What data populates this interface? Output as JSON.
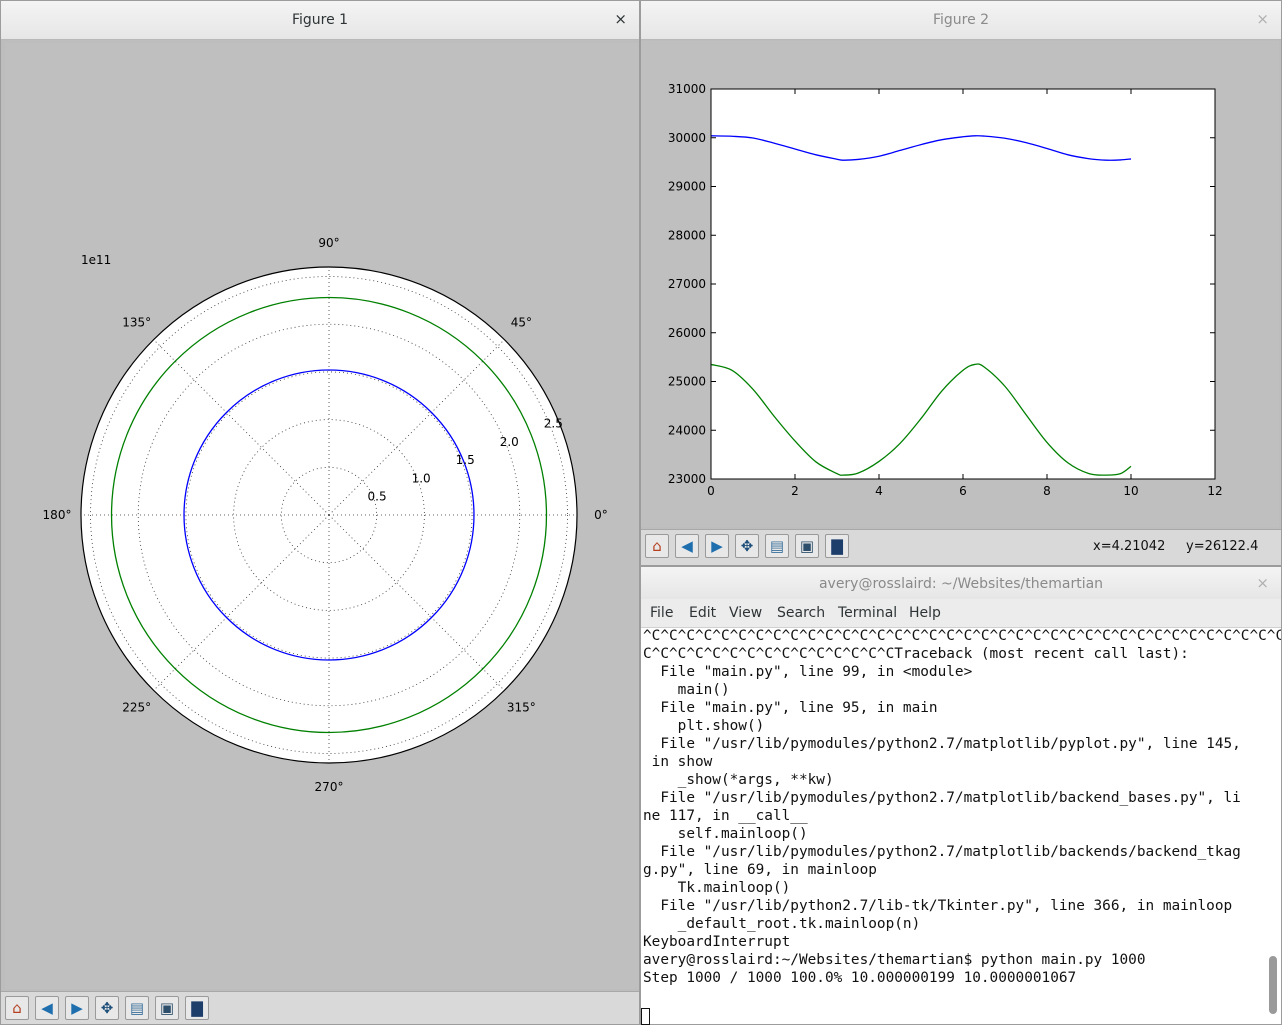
{
  "figure1": {
    "title": "Figure 1",
    "close": "×",
    "polar": {
      "scale_label": "1e11",
      "angle_labels": [
        "0°",
        "45°",
        "90°",
        "135°",
        "180°",
        "225°",
        "270°",
        "315°"
      ],
      "radial_labels": [
        "0.5",
        "1.0",
        "1.5",
        "2.0",
        "2.5"
      ],
      "rmax": 2.6,
      "series": [
        {
          "color": "#0000ff",
          "radius": 1.52
        },
        {
          "color": "#008000",
          "radius": 2.28
        }
      ]
    }
  },
  "figure2": {
    "title": "Figure 2",
    "close": "×",
    "x_readout": "x=4.21042",
    "y_readout": "y=26122.4"
  },
  "toolbar_icons": [
    "home-icon",
    "back-icon",
    "forward-icon",
    "pan-icon",
    "subplots-icon",
    "configure-icon",
    "save-icon"
  ],
  "terminal": {
    "title": "avery@rosslaird: ~/Websites/themartian",
    "close": "×",
    "menu": [
      "File",
      "Edit",
      "View",
      "Search",
      "Terminal",
      "Help"
    ],
    "lines": [
      "^C^C^C^C^C^C^C^C^C^C^C^C^C^C^C^C^C^C^C^C^C^C^C^C^C^C^C^C^C^C^C^C^C^C^C^C^C",
      "C^C^C^C^C^C^C^C^C^C^C^C^C^C^CTraceback (most recent call last):",
      "  File \"main.py\", line 99, in <module>",
      "    main()",
      "  File \"main.py\", line 95, in main",
      "    plt.show()",
      "  File \"/usr/lib/pymodules/python2.7/matplotlib/pyplot.py\", line 145,",
      " in show",
      "    _show(*args, **kw)",
      "  File \"/usr/lib/pymodules/python2.7/matplotlib/backend_bases.py\", li",
      "ne 117, in __call__",
      "    self.mainloop()",
      "  File \"/usr/lib/pymodules/python2.7/matplotlib/backends/backend_tkag",
      "g.py\", line 69, in mainloop",
      "    Tk.mainloop()",
      "  File \"/usr/lib/python2.7/lib-tk/Tkinter.py\", line 366, in mainloop",
      "    _default_root.tk.mainloop(n)",
      "KeyboardInterrupt",
      "avery@rosslaird:~/Websites/themartian$ python main.py 1000",
      "Step 1000 / 1000 100.0% 10.000000199 10.0000001067"
    ]
  },
  "chart_data": [
    {
      "type": "line",
      "projection": "polar",
      "radial_scale_label": "1e11",
      "theta_tick_labels": [
        "0°",
        "45°",
        "90°",
        "135°",
        "180°",
        "225°",
        "270°",
        "315°"
      ],
      "r_tick_labels": [
        "0.5",
        "1.0",
        "1.5",
        "2.0",
        "2.5"
      ],
      "rlim": [
        0,
        2.6
      ],
      "grid": true,
      "series": [
        {
          "color": "#0000ff",
          "shape": "circle",
          "r": 1.52
        },
        {
          "color": "#008000",
          "shape": "circle",
          "r": 2.28
        }
      ]
    },
    {
      "type": "line",
      "xlim": [
        0,
        12
      ],
      "ylim": [
        23000,
        31000
      ],
      "x_ticks": [
        "0",
        "2",
        "4",
        "6",
        "8",
        "10",
        "12"
      ],
      "y_ticks": [
        "23000",
        "24000",
        "25000",
        "26000",
        "27000",
        "28000",
        "29000",
        "30000",
        "31000"
      ],
      "grid": false,
      "series": [
        {
          "color": "#0000ff",
          "x": [
            0,
            0.5,
            1,
            1.5,
            2,
            2.5,
            3,
            3.14,
            3.5,
            4,
            4.5,
            5,
            5.5,
            6,
            6.28,
            6.5,
            7,
            7.5,
            8,
            8.5,
            9,
            9.42,
            9.75,
            10
          ],
          "y": [
            30040,
            30030,
            29995,
            29890,
            29770,
            29650,
            29560,
            29540,
            29555,
            29620,
            29740,
            29860,
            29960,
            30020,
            30040,
            30035,
            29990,
            29900,
            29780,
            29650,
            29570,
            29540,
            29545,
            29565
          ]
        },
        {
          "color": "#008000",
          "x": [
            0,
            0.5,
            1,
            1.5,
            2,
            2.5,
            3,
            3.14,
            3.5,
            4,
            4.5,
            5,
            5.5,
            6,
            6.28,
            6.5,
            7,
            7.5,
            8,
            8.5,
            9,
            9.42,
            9.75,
            10
          ],
          "y": [
            25350,
            25230,
            24840,
            24290,
            23780,
            23350,
            23110,
            23080,
            23120,
            23360,
            23730,
            24240,
            24810,
            25230,
            25350,
            25300,
            24900,
            24320,
            23750,
            23330,
            23110,
            23080,
            23110,
            23260
          ]
        }
      ]
    }
  ]
}
